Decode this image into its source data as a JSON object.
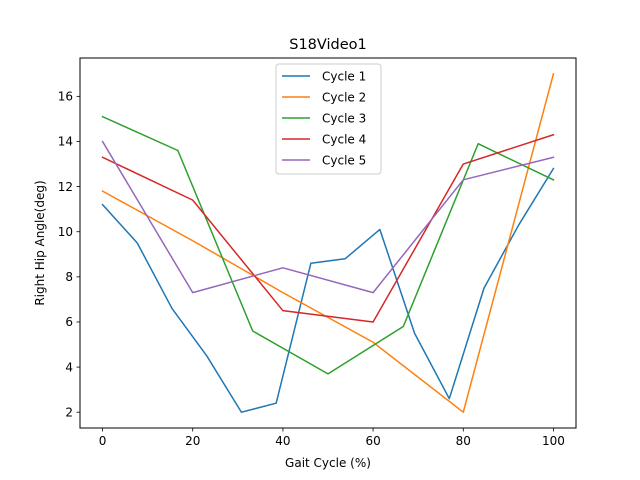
{
  "chart_data": {
    "type": "line",
    "title": "S18Video1",
    "xlabel": "Gait Cycle (%)",
    "ylabel": "Right Hip Angle(deg)",
    "xlim": [
      -5,
      105
    ],
    "ylim": [
      1.3,
      17.7
    ],
    "xticks": [
      0,
      20,
      40,
      60,
      80,
      100
    ],
    "yticks": [
      2,
      4,
      6,
      8,
      10,
      12,
      14,
      16
    ],
    "grid": false,
    "legend_position": "upper-center",
    "series": [
      {
        "name": "Cycle 1",
        "color": "#1f77b4",
        "x": [
          0,
          7.7,
          15.4,
          23.1,
          30.8,
          38.5,
          46.2,
          53.8,
          61.5,
          69.2,
          76.9,
          84.6,
          92.3,
          100
        ],
        "y": [
          11.2,
          9.5,
          6.6,
          4.5,
          2.0,
          2.4,
          8.6,
          8.8,
          10.1,
          5.5,
          2.6,
          7.5,
          10.3,
          12.8
        ]
      },
      {
        "name": "Cycle 2",
        "color": "#ff7f0e",
        "x": [
          0,
          20,
          40,
          60,
          80,
          100
        ],
        "y": [
          11.8,
          9.6,
          7.3,
          5.1,
          2.0,
          17.0
        ]
      },
      {
        "name": "Cycle 3",
        "color": "#2ca02c",
        "x": [
          0,
          16.7,
          33.3,
          50,
          66.7,
          83.3,
          100
        ],
        "y": [
          15.1,
          13.6,
          5.6,
          3.7,
          5.8,
          13.9,
          12.3
        ]
      },
      {
        "name": "Cycle 4",
        "color": "#d62728",
        "x": [
          0,
          20,
          40,
          60,
          80,
          100
        ],
        "y": [
          13.3,
          11.4,
          6.5,
          6.0,
          13.0,
          14.3
        ]
      },
      {
        "name": "Cycle 5",
        "color": "#9467bd",
        "x": [
          0,
          20,
          40,
          60,
          80,
          100
        ],
        "y": [
          14.0,
          7.3,
          8.4,
          7.3,
          12.3,
          13.3
        ]
      }
    ]
  }
}
